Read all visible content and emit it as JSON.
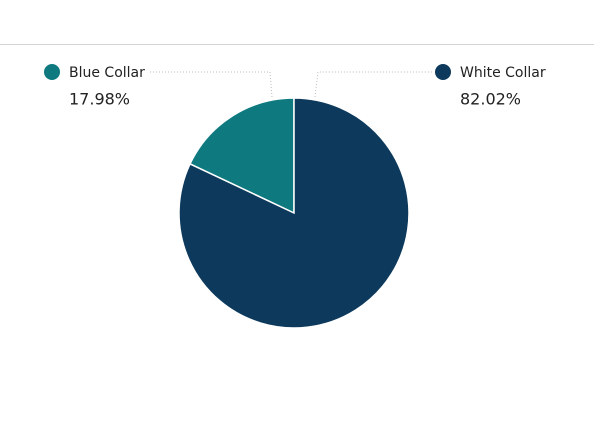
{
  "chart_data": {
    "type": "pie",
    "categories": [
      "Blue Collar",
      "White Collar"
    ],
    "values": [
      17.98,
      82.02
    ],
    "value_labels": [
      "17.98%",
      "82.02%"
    ],
    "colors": [
      "#0e7a80",
      "#0d3a5c"
    ]
  }
}
